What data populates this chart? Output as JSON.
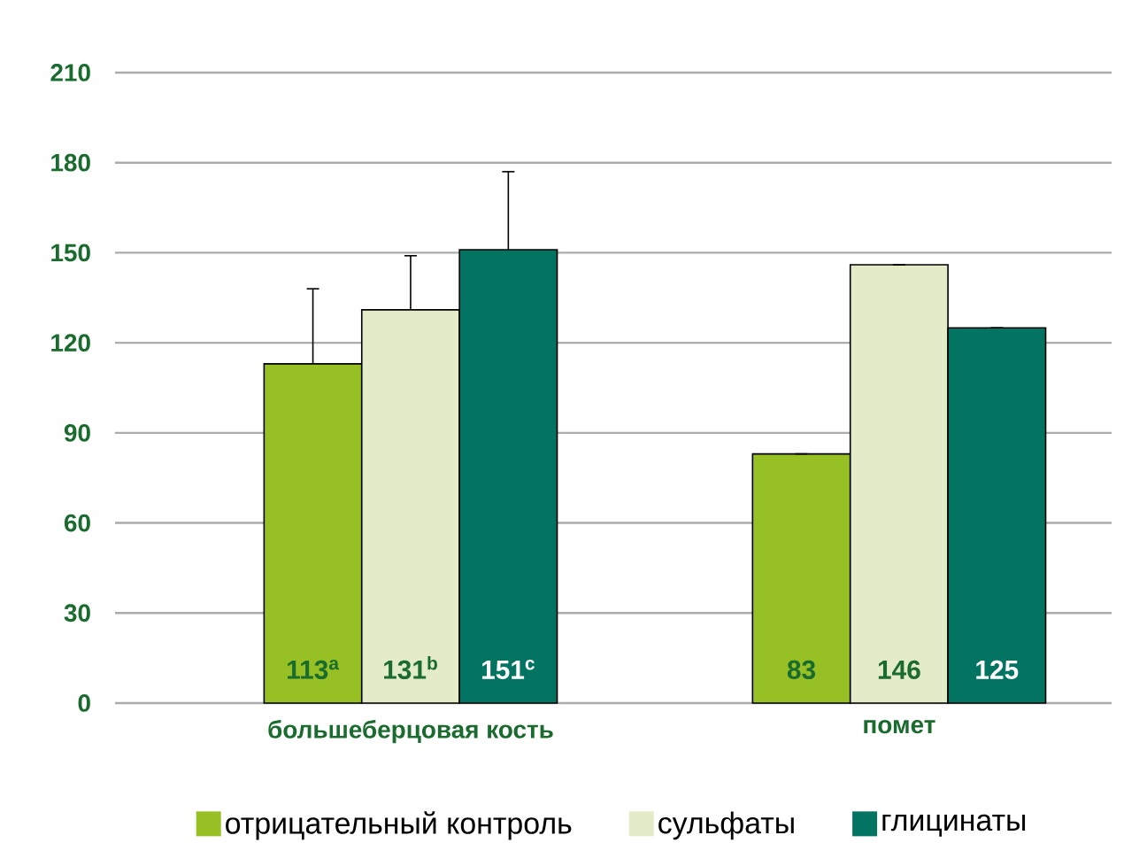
{
  "chart_data": {
    "type": "bar",
    "categories": [
      "большеберцовая кость",
      "помет"
    ],
    "series": [
      {
        "name": "отрицательный контроль",
        "color": "#97c024",
        "values": [
          113,
          83
        ],
        "value_labels": [
          "113$^{a}$",
          "83"
        ],
        "errors": [
          [
            113,
            138
          ],
          null
        ]
      },
      {
        "name": "сульфаты",
        "color": "#e3ebc8",
        "values": [
          131,
          146
        ],
        "value_labels": [
          "131$^{b}$",
          "146"
        ],
        "errors": [
          [
            131,
            149
          ],
          null
        ]
      },
      {
        "name": "глицинаты",
        "color": "#037362",
        "values": [
          151,
          125
        ],
        "value_labels": [
          "151$^{c}$",
          "125"
        ],
        "errors": [
          [
            151,
            177
          ],
          null
        ]
      }
    ],
    "ylim": [
      0,
      210
    ],
    "yticks": [
      0,
      30,
      60,
      90,
      120,
      150,
      180,
      210
    ],
    "grid": "y",
    "legend": "bottom"
  }
}
